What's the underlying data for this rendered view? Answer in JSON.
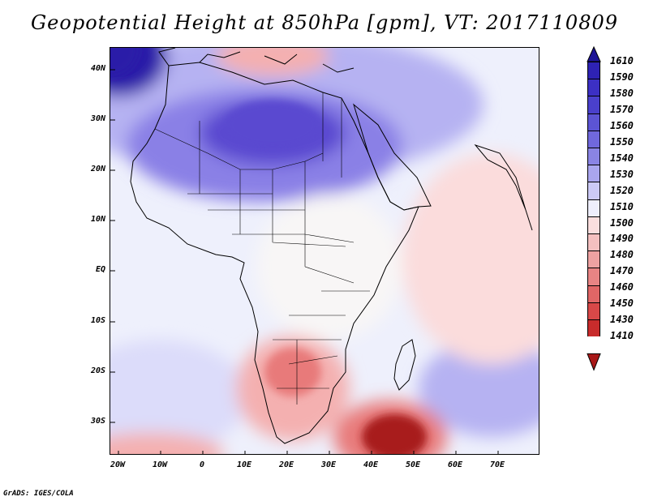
{
  "title": "Geopotential Height at 850hPa [gpm], VT: 2017110809",
  "footer": "GrADS: IGES/COLA",
  "map": {
    "region": "Africa and surrounding oceans",
    "y_labels": [
      "40N",
      "30N",
      "20N",
      "10N",
      "EQ",
      "10S",
      "20S",
      "30S"
    ],
    "x_labels": [
      "20W",
      "10W",
      "0",
      "10E",
      "20E",
      "30E",
      "40E",
      "50E",
      "60E",
      "70E"
    ],
    "colors": {
      "high_max": "#2a1ea8",
      "high_strong": "#5a4ad0",
      "high_mid": "#8a80e6",
      "high_light": "#b6b2f2",
      "high_faint": "#dcdcfa",
      "neutral": "#f8f6f6",
      "low_faint": "#fbdcdc",
      "low_light": "#f4b0b0",
      "low_mid": "#e87a7a",
      "low_strong": "#d04646",
      "low_max": "#a81c1c"
    }
  },
  "colorbar": {
    "levels": [
      "1610",
      "1590",
      "1580",
      "1570",
      "1560",
      "1550",
      "1540",
      "1530",
      "1520",
      "1510",
      "1500",
      "1490",
      "1480",
      "1470",
      "1460",
      "1450",
      "1430",
      "1410"
    ],
    "colors": [
      "#1e1496",
      "#2e22b4",
      "#3c30c4",
      "#4a40cc",
      "#5c54d4",
      "#7068dc",
      "#8a84e4",
      "#aaa6ee",
      "#cccaf6",
      "#eeeefc",
      "#fadede",
      "#f4c0c0",
      "#eea2a2",
      "#e88484",
      "#e06666",
      "#d84848",
      "#c82c2c",
      "#a81818"
    ]
  }
}
